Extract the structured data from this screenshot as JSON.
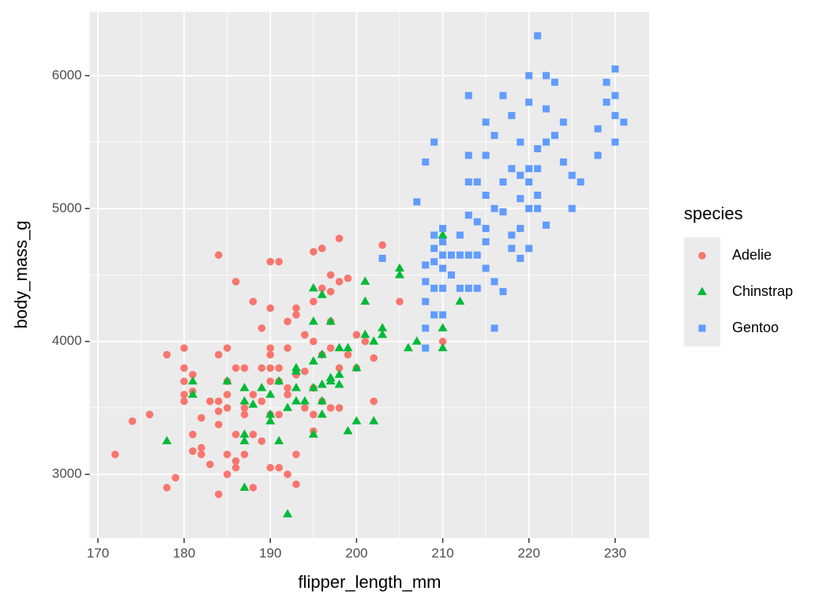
{
  "chart_data": {
    "type": "scatter",
    "x_label": "flipper_length_mm",
    "y_label": "body_mass_g",
    "legend_title": "species",
    "xlim": [
      169.05,
      233.95
    ],
    "ylim": [
      2520,
      6480
    ],
    "xticks": [
      170,
      180,
      190,
      200,
      210,
      220,
      230
    ],
    "yticks": [
      3000,
      4000,
      5000,
      6000
    ],
    "grid": true,
    "legend": "right",
    "series": [
      {
        "name": "Adelie",
        "color": "#F8766D",
        "marker": "circle",
        "x": [
          172,
          174,
          176,
          178,
          178,
          179,
          180,
          180,
          180,
          180,
          180,
          181,
          181,
          181,
          181,
          182,
          182,
          182,
          183,
          183,
          184,
          184,
          184,
          184,
          184,
          184,
          185,
          185,
          185,
          185,
          185,
          185,
          186,
          186,
          186,
          186,
          186,
          187,
          187,
          187,
          187,
          188,
          188,
          188,
          188,
          189,
          189,
          189,
          189,
          190,
          190,
          190,
          190,
          190,
          190,
          190,
          190,
          191,
          191,
          191,
          191,
          191,
          192,
          192,
          192,
          192,
          192,
          193,
          193,
          193,
          193,
          193,
          194,
          194,
          194,
          195,
          195,
          195,
          195,
          195,
          195,
          196,
          196,
          196,
          196,
          197,
          197,
          197,
          197,
          197,
          198,
          198,
          198,
          198,
          199,
          199,
          200,
          200,
          201,
          202,
          202,
          203,
          205,
          210
        ],
        "values": [
          3150,
          3400,
          3450,
          3900,
          2900,
          2975,
          3950,
          3800,
          3700,
          3550,
          3600,
          3750,
          3625,
          3300,
          3175,
          3200,
          3425,
          3150,
          3075,
          3550,
          4650,
          3900,
          3550,
          3475,
          3375,
          2850,
          3950,
          3700,
          3600,
          3500,
          3150,
          3000,
          4450,
          3800,
          3300,
          3100,
          3050,
          3800,
          3500,
          3450,
          3150,
          4300,
          3600,
          3300,
          2900,
          4100,
          3800,
          3550,
          3250,
          4600,
          4250,
          3950,
          3900,
          3800,
          3700,
          3450,
          3050,
          4600,
          3800,
          3700,
          3450,
          3050,
          4150,
          3950,
          3650,
          3600,
          3000,
          4250,
          4200,
          3750,
          3150,
          2925,
          4050,
          3775,
          3500,
          4675,
          4300,
          4000,
          3650,
          3450,
          3325,
          4700,
          4400,
          3900,
          3550,
          4500,
          4375,
          4150,
          3950,
          3500,
          4775,
          4450,
          3800,
          3500,
          4475,
          3900,
          4050,
          3800,
          4000,
          3875,
          3550,
          4725,
          4300,
          4000
        ]
      },
      {
        "name": "Chinstrap",
        "color": "#00BA38",
        "marker": "triangle",
        "x": [
          178,
          181,
          181,
          185,
          187,
          187,
          187,
          187,
          187,
          188,
          189,
          190,
          190,
          190,
          191,
          191,
          192,
          192,
          193,
          193,
          193,
          193,
          194,
          195,
          195,
          195,
          195,
          195,
          196,
          196,
          196,
          196,
          196,
          197,
          197,
          197,
          198,
          198,
          198,
          199,
          199,
          200,
          200,
          201,
          201,
          201,
          202,
          202,
          203,
          203,
          205,
          205,
          206,
          207,
          210,
          210,
          210,
          212
        ],
        "values": [
          3250,
          3700,
          3600,
          3700,
          3650,
          3550,
          3300,
          3250,
          2900,
          3525,
          3650,
          3450,
          3400,
          3600,
          3700,
          3250,
          2700,
          3500,
          3800,
          3775,
          3650,
          3550,
          3550,
          4400,
          4150,
          3850,
          3650,
          3300,
          4350,
          3900,
          3675,
          3550,
          3450,
          4150,
          3725,
          3700,
          3950,
          3750,
          3675,
          3325,
          3950,
          3800,
          3400,
          4450,
          4300,
          4050,
          4000,
          3400,
          4100,
          4050,
          4550,
          4500,
          3950,
          4000,
          4800,
          4100,
          3950,
          4300
        ]
      },
      {
        "name": "Gentoo",
        "color": "#619CFF",
        "marker": "square",
        "x": [
          203,
          207,
          208,
          208,
          208,
          208,
          208,
          208,
          209,
          209,
          209,
          209,
          209,
          209,
          210,
          210,
          210,
          210,
          210,
          210,
          211,
          211,
          212,
          212,
          212,
          213,
          213,
          213,
          213,
          213,
          213,
          214,
          214,
          214,
          214,
          215,
          215,
          215,
          215,
          215,
          215,
          216,
          216,
          216,
          216,
          217,
          217,
          217,
          217,
          218,
          218,
          218,
          218,
          219,
          219,
          219,
          219,
          219,
          220,
          220,
          220,
          220,
          220,
          220,
          221,
          221,
          221,
          221,
          221,
          222,
          222,
          222,
          222,
          223,
          223,
          224,
          224,
          225,
          225,
          226,
          228,
          228,
          229,
          229,
          230,
          230,
          230,
          230,
          231
        ],
        "values": [
          4625,
          5050,
          5350,
          4575,
          4450,
          4300,
          4100,
          3950,
          5500,
          4800,
          4700,
          4600,
          4400,
          4200,
          4850,
          4750,
          4650,
          4550,
          4400,
          4200,
          4500,
          4650,
          4800,
          4650,
          4400,
          5850,
          5400,
          5200,
          4950,
          4650,
          4400,
          5200,
          4900,
          4650,
          4400,
          5650,
          5400,
          5100,
          4850,
          4750,
          4550,
          5550,
          5000,
          4100,
          4450,
          5850,
          5200,
          4975,
          4375,
          5700,
          5300,
          4800,
          4700,
          5500,
          5250,
          5075,
          4850,
          4625,
          6000,
          5800,
          5300,
          5200,
          5000,
          4700,
          6300,
          5450,
          5300,
          5100,
          5000,
          6000,
          5750,
          5500,
          4875,
          5950,
          5550,
          5650,
          5350,
          5250,
          5000,
          5200,
          5600,
          5400,
          5950,
          5800,
          6050,
          5850,
          5500,
          5700,
          5650
        ]
      }
    ]
  }
}
